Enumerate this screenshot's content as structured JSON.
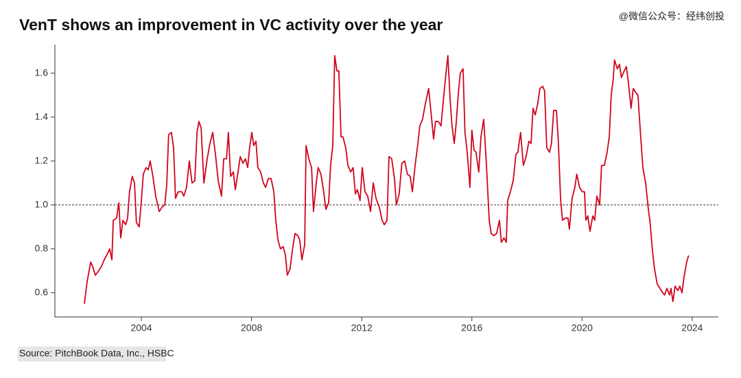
{
  "chart_data": {
    "type": "line",
    "title": "VenT shows an improvement in VC activity over the year",
    "watermark": "@微信公众号：经纬创投",
    "source": "Source: PitchBook Data, Inc., HSBC",
    "color": "#d0021b",
    "reference_line": 1,
    "xlim": [
      2000.86,
      2024.95
    ],
    "xticks": [
      2004,
      2008,
      2012,
      2016,
      2020,
      2024
    ],
    "ylim": [
      0.49,
      1.73
    ],
    "yticks": [
      0.6,
      0.8,
      {
        "value": 1,
        "label": "1.0"
      },
      1.2,
      1.4,
      1.6
    ],
    "x": [
      2001.93,
      2002.03,
      2002.16,
      2002.23,
      2002.33,
      2002.45,
      2002.55,
      2002.65,
      2002.78,
      2002.85,
      2002.93,
      2002.98,
      2003.1,
      2003.18,
      2003.25,
      2003.33,
      2003.43,
      2003.5,
      2003.57,
      2003.67,
      2003.75,
      2003.82,
      2003.92,
      2004.0,
      2004.07,
      2004.17,
      2004.25,
      2004.32,
      2004.42,
      2004.52,
      2004.65,
      2004.75,
      2004.85,
      2004.92,
      2004.99,
      2005.09,
      2005.17,
      2005.24,
      2005.34,
      2005.47,
      2005.54,
      2005.64,
      2005.74,
      2005.84,
      2005.94,
      2006.02,
      2006.09,
      2006.17,
      2006.27,
      2006.39,
      2006.49,
      2006.59,
      2006.69,
      2006.79,
      2006.91,
      2006.99,
      2007.09,
      2007.16,
      2007.24,
      2007.34,
      2007.41,
      2007.51,
      2007.59,
      2007.69,
      2007.78,
      2007.86,
      2007.93,
      2008.01,
      2008.08,
      2008.16,
      2008.23,
      2008.33,
      2008.43,
      2008.51,
      2008.61,
      2008.71,
      2008.81,
      2008.88,
      2008.96,
      2009.05,
      2009.15,
      2009.23,
      2009.3,
      2009.4,
      2009.5,
      2009.58,
      2009.68,
      2009.75,
      2009.83,
      2009.93,
      2009.98,
      2010.08,
      2010.18,
      2010.25,
      2010.35,
      2010.42,
      2010.52,
      2010.62,
      2010.7,
      2010.8,
      2010.87,
      2010.95,
      2011.02,
      2011.1,
      2011.17,
      2011.25,
      2011.32,
      2011.42,
      2011.5,
      2011.6,
      2011.69,
      2011.77,
      2011.84,
      2011.94,
      2012.02,
      2012.12,
      2012.22,
      2012.32,
      2012.42,
      2012.52,
      2012.64,
      2012.74,
      2012.82,
      2012.92,
      2012.99,
      2013.09,
      2013.19,
      2013.26,
      2013.36,
      2013.46,
      2013.56,
      2013.66,
      2013.76,
      2013.84,
      2013.94,
      2014.04,
      2014.11,
      2014.21,
      2014.31,
      2014.43,
      2014.51,
      2014.61,
      2014.68,
      2014.78,
      2014.88,
      2014.96,
      2015.06,
      2015.13,
      2015.21,
      2015.28,
      2015.36,
      2015.43,
      2015.51,
      2015.58,
      2015.68,
      2015.75,
      2015.83,
      2015.93,
      2016.0,
      2016.08,
      2016.15,
      2016.25,
      2016.33,
      2016.43,
      2016.53,
      2016.63,
      2016.7,
      2016.8,
      2016.9,
      2017.0,
      2017.07,
      2017.17,
      2017.25,
      2017.3,
      2017.4,
      2017.5,
      2017.6,
      2017.67,
      2017.77,
      2017.87,
      2017.97,
      2018.07,
      2018.15,
      2018.22,
      2018.3,
      2018.39,
      2018.47,
      2018.57,
      2018.64,
      2018.72,
      2018.82,
      2018.89,
      2018.97,
      2019.07,
      2019.14,
      2019.22,
      2019.29,
      2019.39,
      2019.49,
      2019.54,
      2019.64,
      2019.74,
      2019.81,
      2019.91,
      2020.01,
      2020.09,
      2020.14,
      2020.21,
      2020.29,
      2020.39,
      2020.46,
      2020.54,
      2020.64,
      2020.71,
      2020.81,
      2020.91,
      2020.99,
      2021.06,
      2021.13,
      2021.18,
      2021.28,
      2021.36,
      2021.43,
      2021.53,
      2021.61,
      2021.68,
      2021.78,
      2021.86,
      2021.96,
      2022.03,
      2022.13,
      2022.21,
      2022.31,
      2022.4,
      2022.48,
      2022.55,
      2022.63,
      2022.73,
      2022.83,
      2022.93,
      2023.0,
      2023.08,
      2023.18,
      2023.23,
      2023.3,
      2023.38,
      2023.48,
      2023.55,
      2023.63,
      2023.7,
      2023.8,
      2023.87
    ],
    "values": [
      0.55,
      0.65,
      0.74,
      0.72,
      0.68,
      0.7,
      0.72,
      0.75,
      0.78,
      0.8,
      0.75,
      0.93,
      0.94,
      1.01,
      0.85,
      0.93,
      0.91,
      0.94,
      1.06,
      1.13,
      1.1,
      0.92,
      0.9,
      1.02,
      1.14,
      1.17,
      1.16,
      1.2,
      1.13,
      1.04,
      0.97,
      0.99,
      1.0,
      1.09,
      1.32,
      1.33,
      1.26,
      1.03,
      1.06,
      1.06,
      1.04,
      1.08,
      1.2,
      1.1,
      1.11,
      1.33,
      1.38,
      1.35,
      1.1,
      1.21,
      1.28,
      1.33,
      1.23,
      1.11,
      1.04,
      1.21,
      1.21,
      1.33,
      1.13,
      1.15,
      1.07,
      1.15,
      1.22,
      1.19,
      1.21,
      1.17,
      1.26,
      1.33,
      1.27,
      1.29,
      1.17,
      1.15,
      1.1,
      1.08,
      1.12,
      1.12,
      1.06,
      0.93,
      0.84,
      0.8,
      0.81,
      0.77,
      0.68,
      0.71,
      0.81,
      0.87,
      0.86,
      0.84,
      0.75,
      0.82,
      1.27,
      1.21,
      1.17,
      0.97,
      1.1,
      1.17,
      1.14,
      1.06,
      0.98,
      1.01,
      1.18,
      1.27,
      1.68,
      1.61,
      1.61,
      1.31,
      1.31,
      1.26,
      1.18,
      1.15,
      1.17,
      1.05,
      1.07,
      1.02,
      1.17,
      1.06,
      1.04,
      0.97,
      1.1,
      1.03,
      0.99,
      0.93,
      0.91,
      0.93,
      1.22,
      1.21,
      1.12,
      1.0,
      1.05,
      1.19,
      1.2,
      1.14,
      1.13,
      1.06,
      1.18,
      1.28,
      1.36,
      1.39,
      1.46,
      1.53,
      1.43,
      1.3,
      1.38,
      1.38,
      1.36,
      1.47,
      1.6,
      1.68,
      1.48,
      1.36,
      1.28,
      1.37,
      1.51,
      1.6,
      1.62,
      1.33,
      1.24,
      1.08,
      1.34,
      1.25,
      1.24,
      1.15,
      1.31,
      1.39,
      1.18,
      0.93,
      0.87,
      0.86,
      0.87,
      0.93,
      0.83,
      0.85,
      0.83,
      1.02,
      1.06,
      1.11,
      1.23,
      1.24,
      1.33,
      1.18,
      1.22,
      1.29,
      1.28,
      1.44,
      1.41,
      1.46,
      1.53,
      1.54,
      1.52,
      1.26,
      1.24,
      1.28,
      1.43,
      1.43,
      1.29,
      1.03,
      0.93,
      0.94,
      0.94,
      0.89,
      1.03,
      1.08,
      1.14,
      1.08,
      1.06,
      1.06,
      0.93,
      0.95,
      0.88,
      0.95,
      0.93,
      1.04,
      1.0,
      1.18,
      1.18,
      1.24,
      1.31,
      1.5,
      1.57,
      1.66,
      1.62,
      1.64,
      1.58,
      1.61,
      1.63,
      1.56,
      1.44,
      1.53,
      1.51,
      1.5,
      1.31,
      1.17,
      1.1,
      0.99,
      0.91,
      0.8,
      0.71,
      0.64,
      0.62,
      0.6,
      0.59,
      0.62,
      0.59,
      0.62,
      0.56,
      0.63,
      0.61,
      0.63,
      0.6,
      0.67,
      0.74,
      0.77
    ]
  }
}
